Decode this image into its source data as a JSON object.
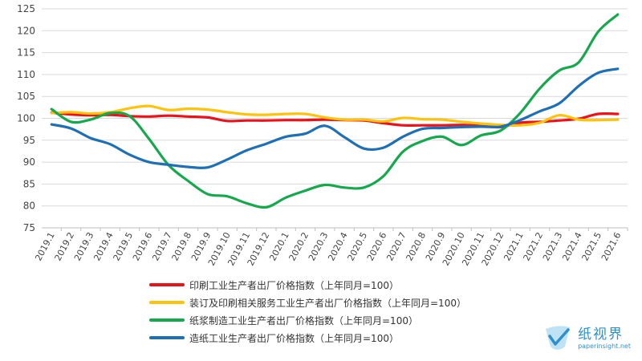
{
  "chart_data": {
    "type": "line",
    "title": "",
    "xlabel": "",
    "ylabel": "",
    "ylim": [
      75,
      125
    ],
    "yticks": [
      75,
      80,
      85,
      90,
      95,
      100,
      105,
      110,
      115,
      120,
      125
    ],
    "grid": "horizontal",
    "legend_position": "bottom",
    "x": [
      "2019.1",
      "2019.2",
      "2019.3",
      "2019.4",
      "2019.5",
      "2019.6",
      "2019.7",
      "2019.8",
      "2019.9",
      "2019.10",
      "2019.11",
      "2019.12",
      "2020.1",
      "2020.2",
      "2020.3",
      "2020.4",
      "2020.5",
      "2020.6",
      "2020.7",
      "2020.8",
      "2020.9",
      "2020.10",
      "2020.11",
      "2020.12",
      "2021.1",
      "2021.2",
      "2021.3",
      "2021.4",
      "2021.5",
      "2021.6"
    ],
    "series": [
      {
        "name": "印刷工业生产者出厂价格指数（上年同月=100）",
        "color": "#e8141b",
        "values": [
          101.3,
          100.9,
          100.7,
          100.8,
          100.5,
          100.4,
          100.6,
          100.4,
          100.2,
          99.4,
          99.5,
          99.5,
          99.6,
          99.6,
          99.7,
          99.6,
          99.5,
          98.9,
          98.4,
          98.4,
          98.4,
          98.5,
          98.3,
          98.0,
          99.0,
          99.2,
          99.5,
          99.9,
          101.0,
          101.0
        ]
      },
      {
        "name": "装订及印刷相关服务工业生产者出厂价格指数（上年同月=100）",
        "color": "#ffc20e",
        "values": [
          101.2,
          101.4,
          101.1,
          101.4,
          102.3,
          102.8,
          101.9,
          102.2,
          102.0,
          101.4,
          100.9,
          100.8,
          101.0,
          101.0,
          100.2,
          99.7,
          99.7,
          99.3,
          100.1,
          99.8,
          99.7,
          99.2,
          98.8,
          98.5,
          98.4,
          99.0,
          100.7,
          99.7,
          99.6,
          99.7
        ]
      },
      {
        "name": "纸浆制造工业生产者出厂价格指数（上年同月=100）",
        "color": "#17a84e",
        "values": [
          102.1,
          99.2,
          99.7,
          101.2,
          100.5,
          95.3,
          89.3,
          85.7,
          82.7,
          82.2,
          80.6,
          79.7,
          81.9,
          83.5,
          84.8,
          84.2,
          84.2,
          86.8,
          92.4,
          94.8,
          95.8,
          93.9,
          96.1,
          97.2,
          101.2,
          106.8,
          110.9,
          112.8,
          119.8,
          123.7
        ]
      },
      {
        "name": "造纸工业生产者出厂价格指数（上年同月=100）",
        "color": "#1f6fb5",
        "values": [
          98.6,
          97.7,
          95.5,
          94.1,
          91.7,
          90.0,
          89.4,
          88.9,
          88.8,
          90.6,
          92.7,
          94.2,
          95.8,
          96.5,
          98.3,
          95.7,
          93.1,
          93.3,
          95.8,
          97.6,
          97.8,
          98.0,
          98.1,
          98.1,
          99.6,
          101.6,
          103.4,
          107.4,
          110.4,
          111.3
        ]
      }
    ]
  },
  "watermark": {
    "name_cn": "纸视界",
    "url": "paperinsight.net"
  }
}
